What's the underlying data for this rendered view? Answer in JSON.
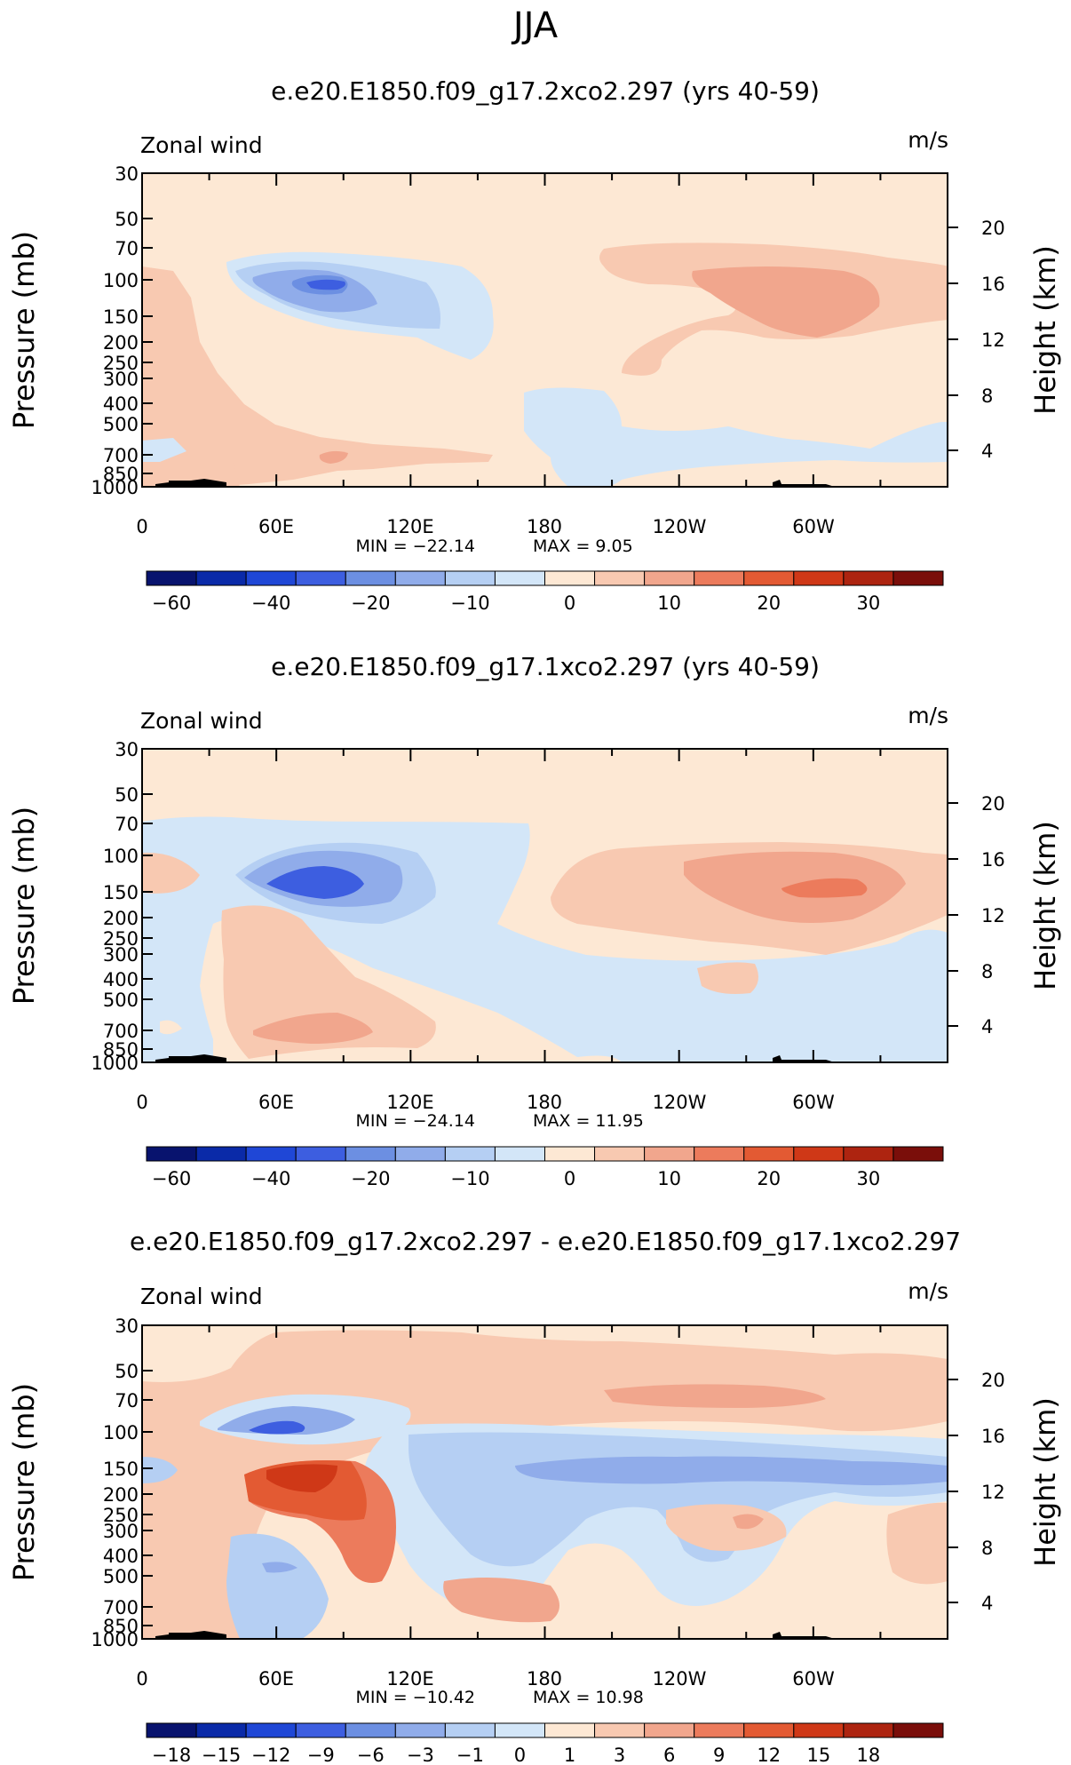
{
  "page": {
    "title": "JJA"
  },
  "colors": {
    "bg": "#fde8d4",
    "light_blue": "#d3e6f8",
    "blue1": "#b5cff3",
    "blue2": "#90acea",
    "blue3": "#6c8fe2",
    "blue4": "#3d5ee0",
    "salmon1": "#f8c9b1",
    "salmon2": "#f1a68d",
    "orange1": "#ec7b5c",
    "orange2": "#e35a33"
  },
  "colorbar_full": [
    {
      "color": "#08136e",
      "label": "−60"
    },
    {
      "color": "#0a2aa8",
      "label": ""
    },
    {
      "color": "#1f47d6",
      "label": "−40"
    },
    {
      "color": "#3d5ee0",
      "label": ""
    },
    {
      "color": "#6c8fe2",
      "label": "−20"
    },
    {
      "color": "#90acea",
      "label": ""
    },
    {
      "color": "#b5cff3",
      "label": "−10"
    },
    {
      "color": "#d3e6f8",
      "label": ""
    },
    {
      "color": "#fde8d4",
      "label": "0"
    },
    {
      "color": "#f8c9b1",
      "label": ""
    },
    {
      "color": "#f1a68d",
      "label": "10"
    },
    {
      "color": "#ec7b5c",
      "label": ""
    },
    {
      "color": "#e35a33",
      "label": "20"
    },
    {
      "color": "#cf3817",
      "label": ""
    },
    {
      "color": "#ad2410",
      "label": "30"
    },
    {
      "color": "#7a0e0a",
      "label": ""
    }
  ],
  "colorbar_diff": [
    {
      "color": "#08136e",
      "label": "−18"
    },
    {
      "color": "#0a2aa8",
      "label": "−15"
    },
    {
      "color": "#1f47d6",
      "label": "−12"
    },
    {
      "color": "#3d5ee0",
      "label": "−9"
    },
    {
      "color": "#6c8fe2",
      "label": "−6"
    },
    {
      "color": "#90acea",
      "label": "−3"
    },
    {
      "color": "#b5cff3",
      "label": "−1"
    },
    {
      "color": "#d3e6f8",
      "label": "0"
    },
    {
      "color": "#fde8d4",
      "label": "1"
    },
    {
      "color": "#f8c9b1",
      "label": "3"
    },
    {
      "color": "#f1a68d",
      "label": "6"
    },
    {
      "color": "#ec7b5c",
      "label": "9"
    },
    {
      "color": "#e35a33",
      "label": "12"
    },
    {
      "color": "#cf3817",
      "label": "15"
    },
    {
      "color": "#ad2410",
      "label": "18"
    },
    {
      "color": "#7a0e0a",
      "label": ""
    }
  ],
  "chart_data": [
    {
      "type": "heatmap",
      "title": "e.e20.E1850.f09_g17.2xco2.297 (yrs 40-59)",
      "variable_label": "Zonal wind",
      "units_label": "m/s",
      "ylabel": "Pressure (mb)",
      "y2label": "Height (km)",
      "xticks": [
        "0",
        "60E",
        "120E",
        "180",
        "120W",
        "60W"
      ],
      "pressure_ticks": [
        "30",
        "50",
        "70",
        "100",
        "150",
        "200",
        "250",
        "300",
        "400",
        "500",
        "700",
        "850",
        "1000"
      ],
      "height_ticks": [
        "20",
        "16",
        "12",
        "8",
        "4"
      ],
      "min_label": "MIN = −22.14",
      "max_label": "MAX =    9.05",
      "min": -22.14,
      "max": 9.05
    },
    {
      "type": "heatmap",
      "title": "e.e20.E1850.f09_g17.1xco2.297 (yrs 40-59)",
      "variable_label": "Zonal wind",
      "units_label": "m/s",
      "ylabel": "Pressure (mb)",
      "y2label": "Height (km)",
      "xticks": [
        "0",
        "60E",
        "120E",
        "180",
        "120W",
        "60W"
      ],
      "pressure_ticks": [
        "30",
        "50",
        "70",
        "100",
        "150",
        "200",
        "250",
        "300",
        "400",
        "500",
        "700",
        "850",
        "1000"
      ],
      "height_ticks": [
        "20",
        "16",
        "12",
        "8",
        "4"
      ],
      "min_label": "MIN = −24.14",
      "max_label": "MAX =   11.95",
      "min": -24.14,
      "max": 11.95
    },
    {
      "type": "heatmap",
      "title": "e.e20.E1850.f09_g17.2xco2.297 - e.e20.E1850.f09_g17.1xco2.297",
      "variable_label": "Zonal wind",
      "units_label": "m/s",
      "ylabel": "Pressure (mb)",
      "y2label": "Height (km)",
      "xticks": [
        "0",
        "60E",
        "120E",
        "180",
        "120W",
        "60W"
      ],
      "pressure_ticks": [
        "30",
        "50",
        "70",
        "100",
        "150",
        "200",
        "250",
        "300",
        "400",
        "500",
        "700",
        "850",
        "1000"
      ],
      "height_ticks": [
        "20",
        "16",
        "12",
        "8",
        "4"
      ],
      "min_label": "MIN = −10.42",
      "max_label": "MAX =   10.98",
      "min": -10.42,
      "max": 10.98
    }
  ]
}
